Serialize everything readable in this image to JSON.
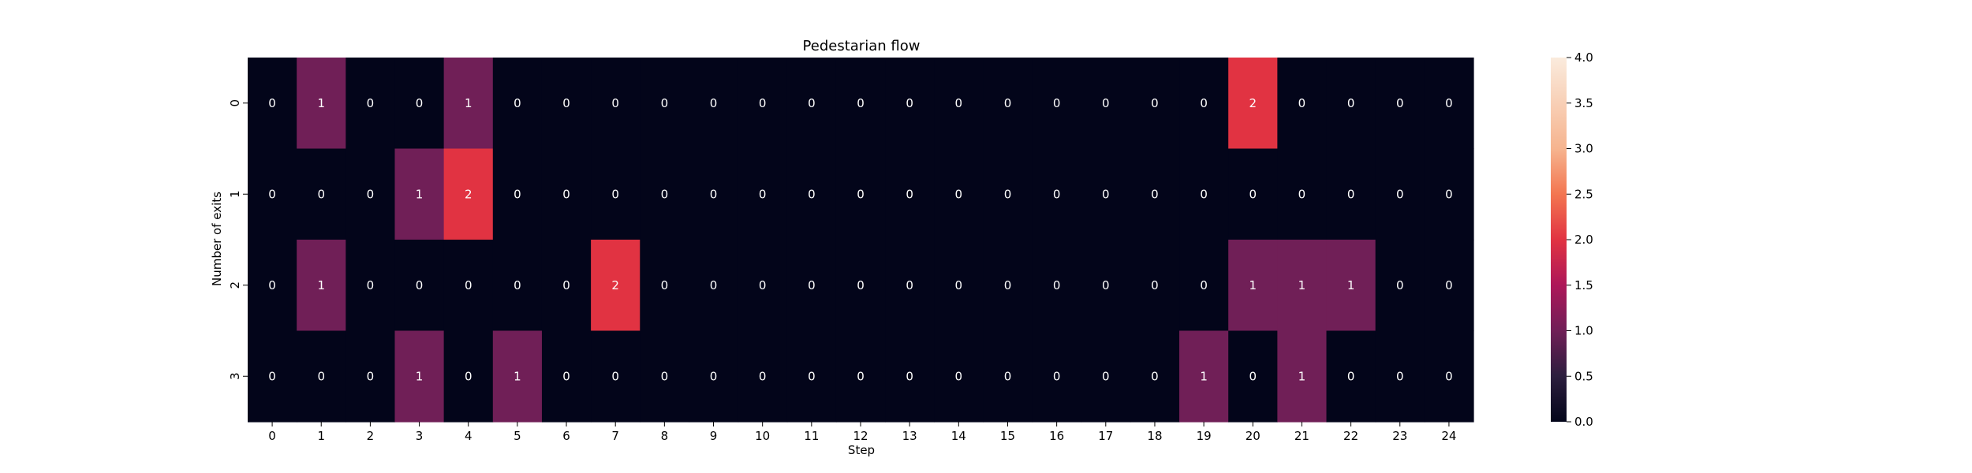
{
  "chart_data": {
    "type": "heatmap",
    "title": "Pedestarian flow",
    "xlabel": "Step",
    "ylabel": "Number of exits",
    "x": [
      "0",
      "1",
      "2",
      "3",
      "4",
      "5",
      "6",
      "7",
      "8",
      "9",
      "10",
      "11",
      "12",
      "13",
      "14",
      "15",
      "16",
      "17",
      "18",
      "19",
      "20",
      "21",
      "22",
      "23",
      "24"
    ],
    "y": [
      "0",
      "1",
      "2",
      "3"
    ],
    "values": [
      [
        0,
        1,
        0,
        0,
        1,
        0,
        0,
        0,
        0,
        0,
        0,
        0,
        0,
        0,
        0,
        0,
        0,
        0,
        0,
        0,
        2,
        0,
        0,
        0,
        0
      ],
      [
        0,
        0,
        0,
        1,
        2,
        0,
        0,
        0,
        0,
        0,
        0,
        0,
        0,
        0,
        0,
        0,
        0,
        0,
        0,
        0,
        0,
        0,
        0,
        0,
        0
      ],
      [
        0,
        1,
        0,
        0,
        0,
        0,
        0,
        2,
        0,
        0,
        0,
        0,
        0,
        0,
        0,
        0,
        0,
        0,
        0,
        0,
        1,
        1,
        1,
        0,
        0
      ],
      [
        0,
        0,
        0,
        1,
        0,
        1,
        0,
        0,
        0,
        0,
        0,
        0,
        0,
        0,
        0,
        0,
        0,
        0,
        0,
        1,
        0,
        1,
        0,
        0,
        0
      ]
    ],
    "colorbar": {
      "range": [
        0,
        4
      ],
      "ticks": [
        "0.0",
        "0.5",
        "1.0",
        "1.5",
        "2.0",
        "2.5",
        "3.0",
        "3.5",
        "4.0"
      ],
      "colormap": "rocket"
    },
    "annotations": true,
    "grid": false,
    "colors": {
      "v0": "#03051a",
      "v1": "#701f57",
      "v2": "#e13342",
      "annotation_dark_bg": "#ffffff"
    }
  }
}
